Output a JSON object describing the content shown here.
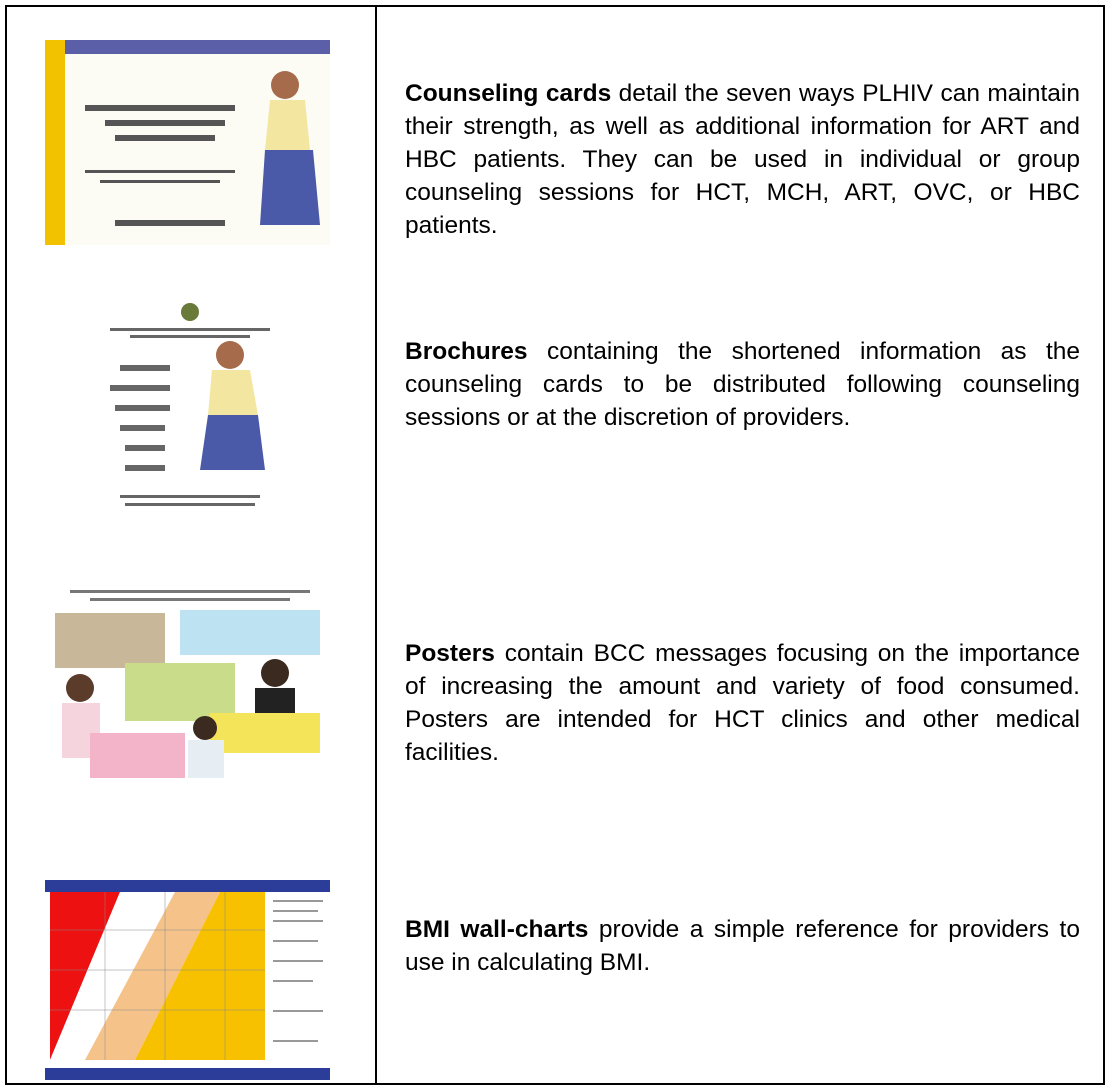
{
  "rows": [
    {
      "term": "Counseling cards",
      "text": "detail the seven ways PLHIV can maintain their strength, as well as additional information for ART and HBC patients.  They can be used in individual or group counseling sessions for HCT, MCH, ART, OVC, or HBC patients."
    },
    {
      "term": "Brochures",
      "text": "containing the shortened information as the counseling cards to be distributed following counseling sessions or at the discretion of providers."
    },
    {
      "term": "Posters",
      "text": "contain BCC messages focusing on the importance of increasing the amount and variety of food consumed. Posters are intended for HCT clinics and other medical facilities."
    },
    {
      "term": "BMI wall-charts",
      "text": "provide a simple reference for providers to use in calculating BMI."
    }
  ]
}
